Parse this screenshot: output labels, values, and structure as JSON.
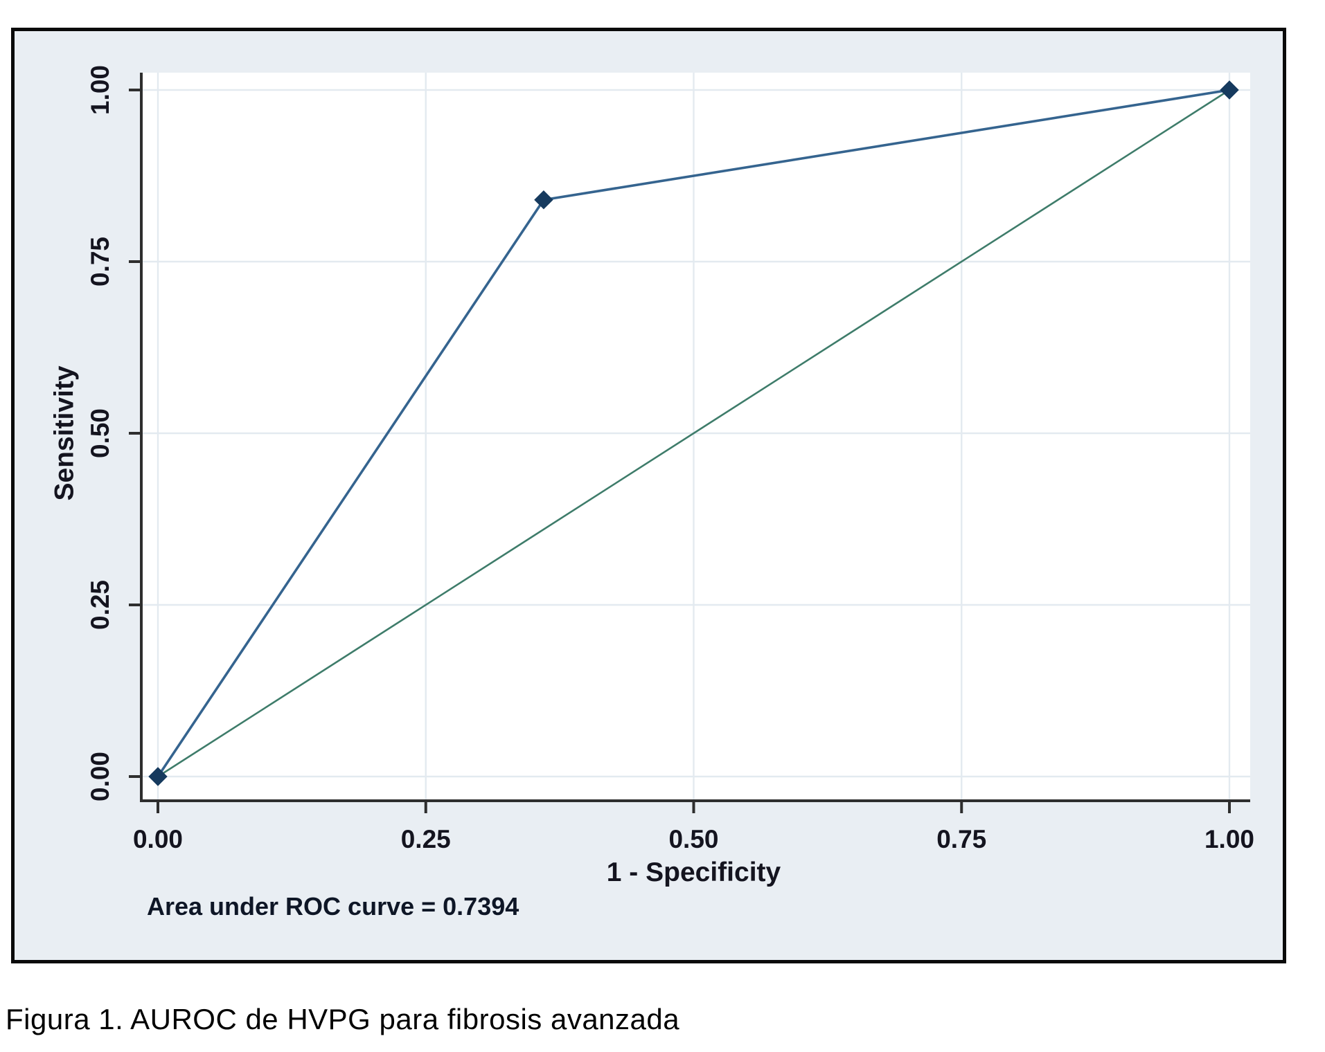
{
  "figure": {
    "caption": "Figura 1. AUROC de HVPG para fibrosis avanzada"
  },
  "chart_data": {
    "type": "line",
    "title": "",
    "xlabel": "1 - Specificity",
    "ylabel": "Sensitivity",
    "annotation": "Area under ROC curve = 0.7394",
    "auc": 0.7394,
    "grid": true,
    "legend": "none",
    "x_axis": {
      "title": "1 - Specificity",
      "range": [
        0,
        1
      ],
      "tick_values": [
        0,
        0.25,
        0.5,
        0.75,
        1
      ],
      "tick_labels": [
        "0.00",
        "0.25",
        "0.50",
        "0.75",
        "1.00"
      ]
    },
    "y_axis": {
      "title": "Sensitivity",
      "range": [
        0,
        1
      ],
      "tick_values": [
        0,
        0.25,
        0.5,
        0.75,
        1
      ],
      "tick_labels": [
        "0.00",
        "0.25",
        "0.50",
        "0.75",
        "1.00"
      ]
    },
    "series": [
      {
        "name": "Reference diagonal",
        "x": [
          0,
          1
        ],
        "y": [
          0,
          1
        ],
        "color": "#3e7c6a",
        "line_width": 2.6,
        "marker": "none"
      },
      {
        "name": "ROC curve (HVPG)",
        "x": [
          0,
          0.36,
          1
        ],
        "y": [
          0,
          0.84,
          1
        ],
        "color": "#35648f",
        "line_width": 3.6,
        "marker": "diamond",
        "marker_color": "#163a5e",
        "marker_size": 13
      }
    ],
    "colors": {
      "figure_background": "#e9eef3",
      "plot_background": "#ffffff",
      "grid": "#e3eaf0",
      "axis": "#2e2e2e",
      "text": "#14141f",
      "annotation_text": "#0e1626",
      "border": "#0a0a0a"
    }
  }
}
